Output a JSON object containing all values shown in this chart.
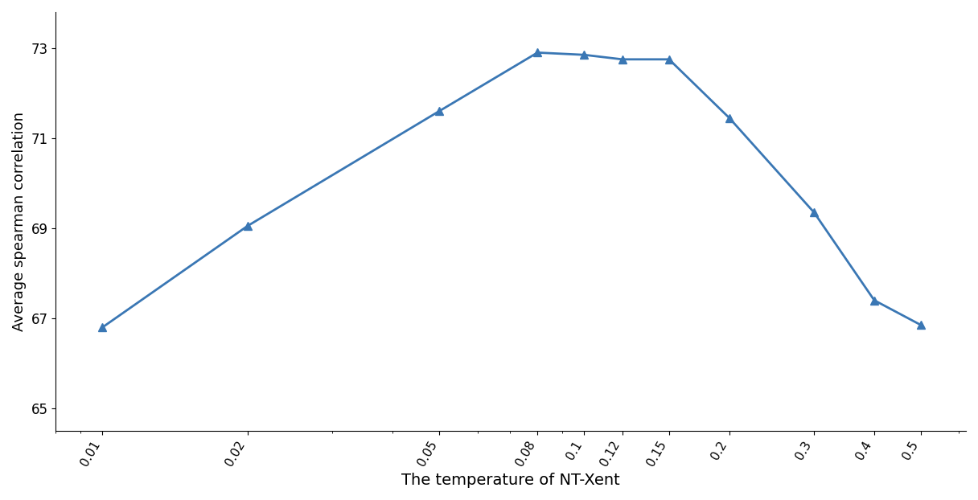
{
  "x": [
    0.01,
    0.02,
    0.05,
    0.08,
    0.1,
    0.12,
    0.15,
    0.2,
    0.3,
    0.4,
    0.5
  ],
  "y": [
    66.8,
    69.05,
    71.6,
    72.9,
    72.85,
    72.75,
    72.75,
    71.45,
    69.35,
    67.4,
    66.85
  ],
  "xlabel": "The temperature of NT-Xent",
  "ylabel": "Average spearman correlation",
  "xtick_labels": [
    "0.01",
    "0.02",
    "0.05",
    "0.08",
    "0.1",
    "0.12",
    "0.15",
    "0.2",
    "0.3",
    "0.4",
    "0.5"
  ],
  "ytick_positions": [
    65,
    67,
    69,
    71,
    73
  ],
  "ylim": [
    64.5,
    73.8
  ],
  "line_color": "#3a77b4",
  "marker": "^",
  "markersize": 7,
  "linewidth": 2.0,
  "figsize": [
    12.16,
    6.22
  ],
  "dpi": 100
}
